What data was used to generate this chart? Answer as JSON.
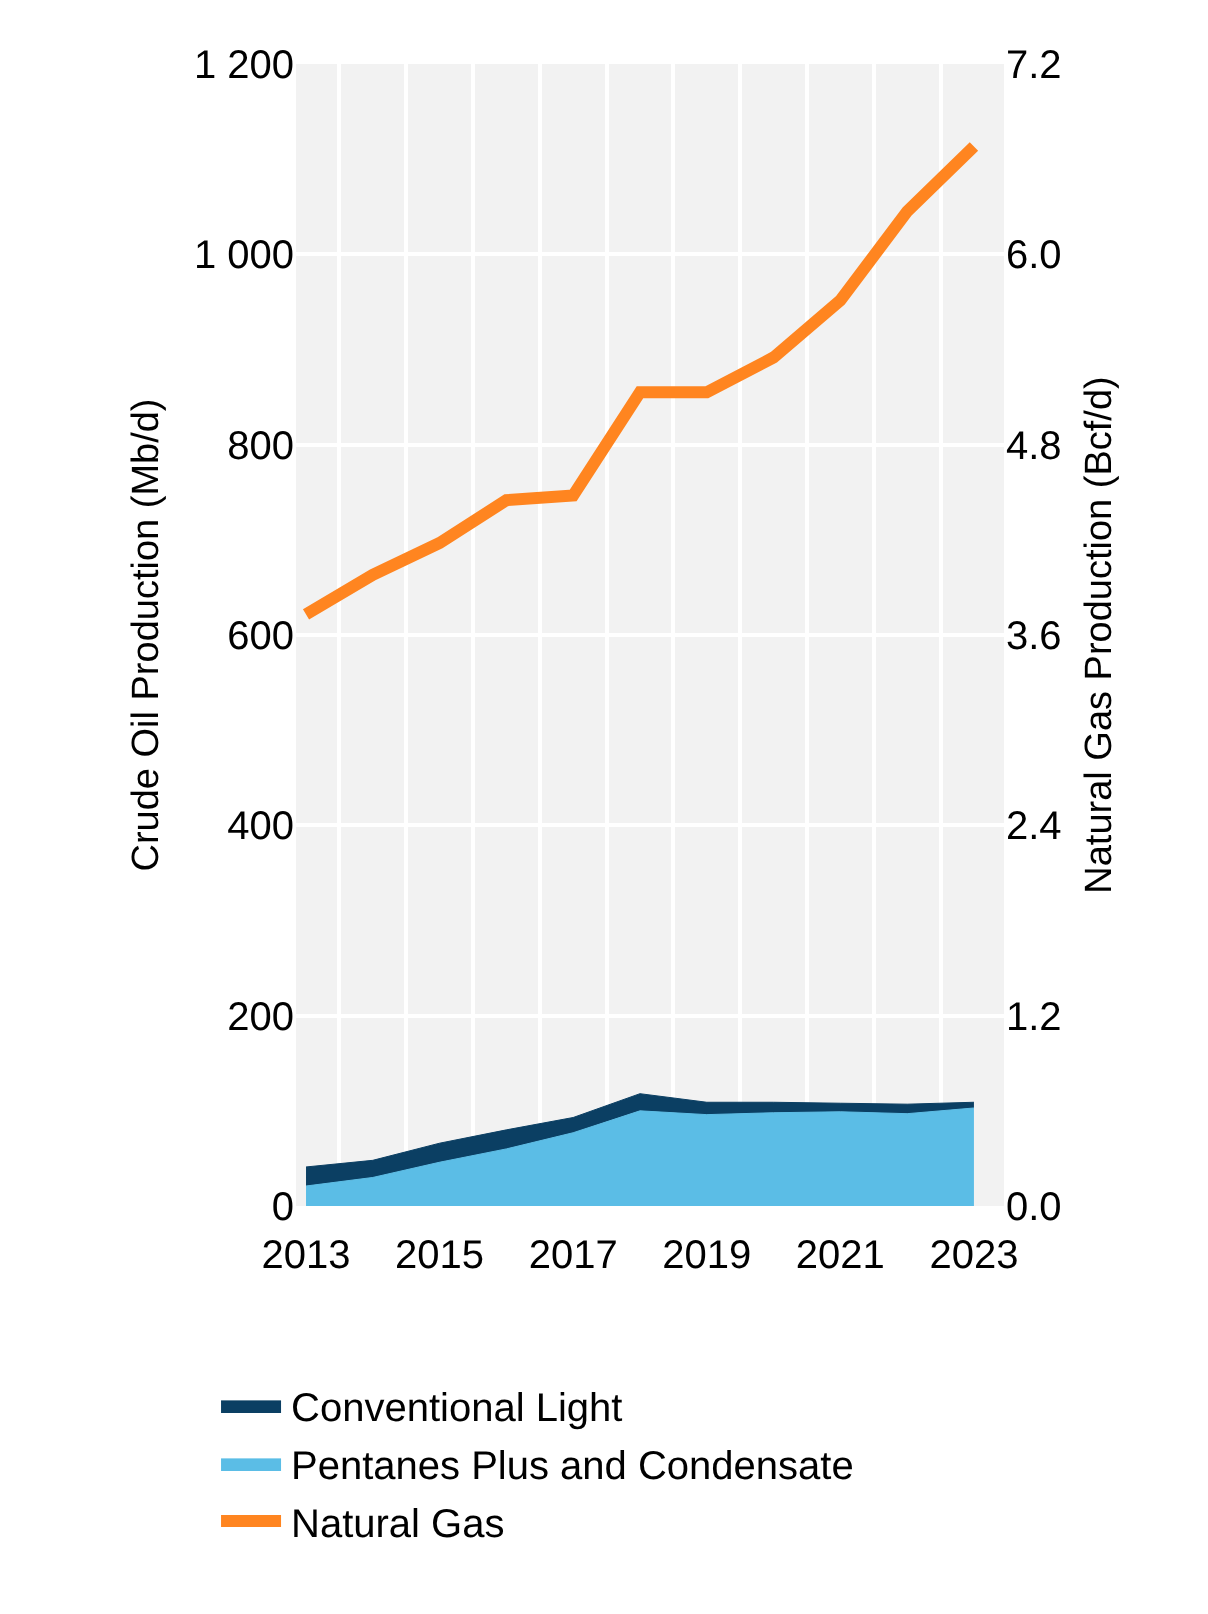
{
  "chart_data": {
    "type": "area",
    "stacked": true,
    "x": [
      2013,
      2014,
      2015,
      2016,
      2017,
      2018,
      2019,
      2020,
      2021,
      2022,
      2023
    ],
    "series": [
      {
        "name": "Pentanes Plus and Condensate",
        "color": "#5bbde6",
        "values": [
          21,
          30,
          46,
          60,
          77,
          100,
          96,
          98,
          99,
          97,
          103
        ]
      },
      {
        "name": "Conventional Light",
        "color": "#0b3f63",
        "values": [
          20,
          18,
          20,
          20,
          16,
          18,
          13,
          11,
          9,
          10,
          6
        ]
      },
      {
        "name": "Natural Gas",
        "type": "line",
        "axis": "y2",
        "color": "#ff8520",
        "values": [
          3.73,
          3.98,
          4.18,
          4.45,
          4.48,
          5.13,
          5.13,
          5.35,
          5.71,
          6.27,
          6.68
        ]
      }
    ],
    "ylabel": "Crude Oil Production (Mb/d)",
    "y2label": "Natural Gas Production (Bcf/d)",
    "xlim": [
      2012.85,
      2023.45
    ],
    "xticks": [
      2013,
      2015,
      2017,
      2019,
      2021,
      2023,
      {
        "value": 2013.5,
        "label": null
      },
      {
        "value": 2014.5,
        "label": null
      },
      {
        "value": 2015.5,
        "label": null
      },
      {
        "value": 2016.5,
        "label": null
      },
      {
        "value": 2017.5,
        "label": null
      },
      {
        "value": 2018.5,
        "label": null
      },
      {
        "value": 2019.5,
        "label": null
      },
      {
        "value": 2020.5,
        "label": null
      },
      {
        "value": 2021.5,
        "label": null
      },
      {
        "value": 2022.5,
        "label": null
      }
    ],
    "ylim": [
      0,
      1200
    ],
    "yticks": [
      0,
      200,
      400,
      600,
      800,
      {
        "value": 1000,
        "label": "1 000"
      },
      {
        "value": 1200,
        "label": "1 200"
      }
    ],
    "y2lim": [
      0,
      7.2
    ],
    "y2ticks": [
      {
        "value": 0,
        "label": "0.0"
      },
      1.2,
      2.4,
      3.6,
      4.8,
      {
        "value": 6,
        "label": "6.0"
      },
      7.2
    ],
    "grid": true,
    "legend": "bottom",
    "line_style": "solid",
    "marker": "none"
  }
}
